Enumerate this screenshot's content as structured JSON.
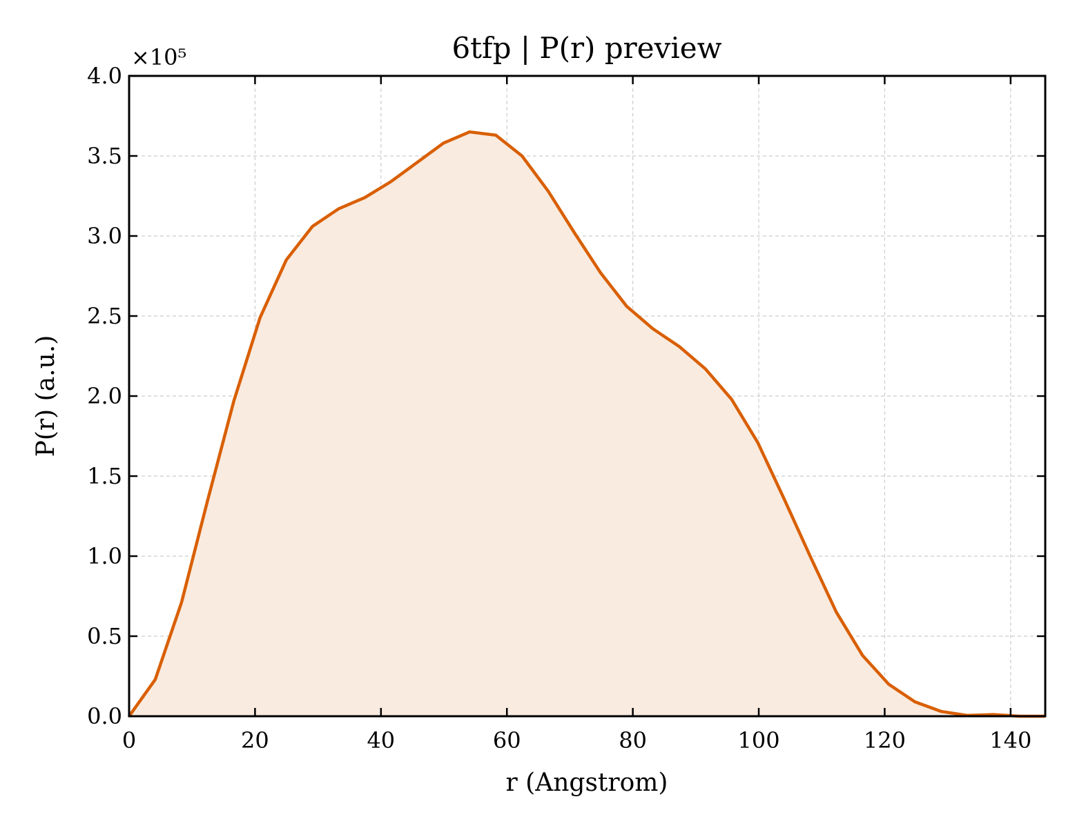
{
  "chart_data": {
    "type": "area",
    "title": "6tfp | P(r) preview",
    "xlabel": "r (Angstrom)",
    "ylabel": "P(r) (a.u.)",
    "y_multiplier_label": "×10⁵",
    "xlim": [
      0,
      145.5
    ],
    "ylim": [
      0,
      4.0
    ],
    "x_ticks": [
      "0",
      "20",
      "40",
      "60",
      "80",
      "100",
      "120",
      "140"
    ],
    "y_ticks": [
      "0.0",
      "0.5",
      "1.0",
      "1.5",
      "2.0",
      "2.5",
      "3.0",
      "3.5",
      "4.0"
    ],
    "grid": true,
    "line_color": "#d95f02",
    "fill_color": "#f9ebe0",
    "series": [
      {
        "x": [
          0,
          4.16,
          8.32,
          12.48,
          16.64,
          20.8,
          24.96,
          29.12,
          33.28,
          37.44,
          41.6,
          45.76,
          49.92,
          54.08,
          58.24,
          62.4,
          66.56,
          70.72,
          74.88,
          79.04,
          83.2,
          87.36,
          91.52,
          95.68,
          99.84,
          104.0,
          108.16,
          112.32,
          116.48,
          120.64,
          124.8,
          128.96,
          133.12,
          137.28,
          141.44,
          145.5
        ],
        "y": [
          0.0,
          0.23,
          0.71,
          1.35,
          1.97,
          2.49,
          2.85,
          3.06,
          3.17,
          3.24,
          3.34,
          3.46,
          3.58,
          3.65,
          3.63,
          3.5,
          3.28,
          3.02,
          2.77,
          2.56,
          2.42,
          2.31,
          2.17,
          1.98,
          1.71,
          1.36,
          1.0,
          0.65,
          0.38,
          0.2,
          0.09,
          0.03,
          0.005,
          0.01,
          0.0,
          0.0
        ]
      }
    ]
  }
}
